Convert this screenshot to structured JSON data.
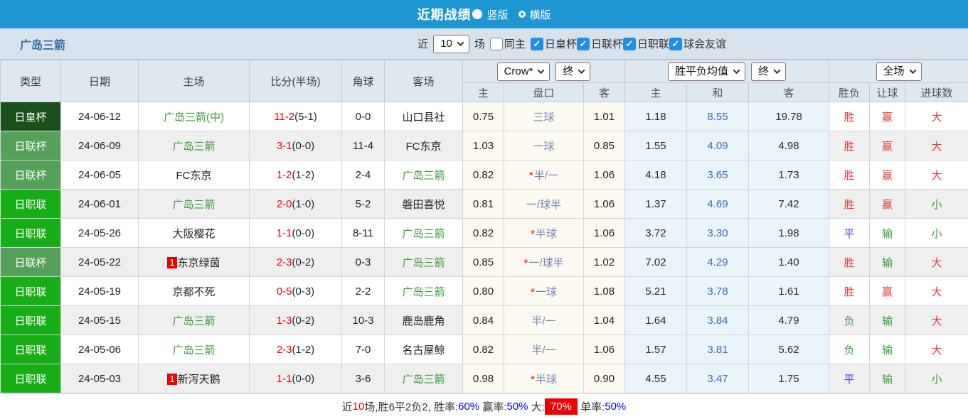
{
  "topbar": {
    "title": "近期战绩",
    "layout_options": [
      {
        "label": "竖版",
        "selected": true
      },
      {
        "label": "横版",
        "selected": false
      }
    ]
  },
  "filterbar": {
    "team": "广岛三箭",
    "recent_label": "近",
    "recent_count": "10",
    "matches_label": "场",
    "same_home": {
      "label": "同主",
      "checked": false
    },
    "leagues": [
      {
        "label": "日皇杯",
        "checked": true
      },
      {
        "label": "日联杯",
        "checked": true
      },
      {
        "label": "日职联",
        "checked": true
      },
      {
        "label": "球会友谊",
        "checked": true
      }
    ]
  },
  "table": {
    "headers": {
      "type": "类型",
      "date": "日期",
      "home": "主场",
      "score": "比分(半场)",
      "corners": "角球",
      "away": "客场"
    },
    "selects": {
      "bookmaker": "Crow*",
      "bookmaker_state": "终",
      "average": "胜平负均值",
      "average_state": "终",
      "scope": "全场"
    },
    "sub_headers": [
      "主",
      "盘口",
      "客",
      "主",
      "和",
      "客",
      "胜负",
      "让球",
      "进球数"
    ],
    "rows": [
      {
        "type": "日皇杯",
        "date": "24-06-12",
        "home": "广岛三箭(中)",
        "home_is_focus": true,
        "home_rank": "",
        "score": "11-2",
        "half": "(5-1)",
        "corners": "0-0",
        "away": "山口县社",
        "away_is_focus": false,
        "crow_home": "0.75",
        "handicap": "三球",
        "handicap_star": false,
        "crow_away": "1.01",
        "avg_home": "1.18",
        "avg_draw": "8.55",
        "avg_away": "19.78",
        "result": "胜",
        "handicap_result": "赢",
        "goals": "大"
      },
      {
        "type": "日联杯",
        "date": "24-06-09",
        "home": "广岛三箭",
        "home_is_focus": true,
        "home_rank": "",
        "score": "3-1",
        "half": "(0-0)",
        "corners": "11-4",
        "away": "FC东京",
        "away_is_focus": false,
        "crow_home": "1.03",
        "handicap": "一球",
        "handicap_star": false,
        "crow_away": "0.85",
        "avg_home": "1.55",
        "avg_draw": "4.09",
        "avg_away": "4.98",
        "result": "胜",
        "handicap_result": "赢",
        "goals": "大"
      },
      {
        "type": "日联杯",
        "date": "24-06-05",
        "home": "FC东京",
        "home_is_focus": false,
        "home_rank": "",
        "score": "1-2",
        "half": "(1-2)",
        "corners": "2-4",
        "away": "广岛三箭",
        "away_is_focus": true,
        "crow_home": "0.82",
        "handicap": "半/一",
        "handicap_star": true,
        "crow_away": "1.06",
        "avg_home": "4.18",
        "avg_draw": "3.65",
        "avg_away": "1.73",
        "result": "胜",
        "handicap_result": "赢",
        "goals": "大"
      },
      {
        "type": "日职联",
        "date": "24-06-01",
        "home": "广岛三箭",
        "home_is_focus": true,
        "home_rank": "",
        "score": "2-0",
        "half": "(1-0)",
        "corners": "5-2",
        "away": "磐田喜悦",
        "away_is_focus": false,
        "crow_home": "0.81",
        "handicap": "一/球半",
        "handicap_star": false,
        "crow_away": "1.06",
        "avg_home": "1.37",
        "avg_draw": "4.69",
        "avg_away": "7.42",
        "result": "胜",
        "handicap_result": "赢",
        "goals": "小"
      },
      {
        "type": "日职联",
        "date": "24-05-26",
        "home": "大阪樱花",
        "home_is_focus": false,
        "home_rank": "",
        "score": "1-1",
        "half": "(0-0)",
        "corners": "8-11",
        "away": "广岛三箭",
        "away_is_focus": true,
        "crow_home": "0.82",
        "handicap": "半球",
        "handicap_star": true,
        "crow_away": "1.06",
        "avg_home": "3.72",
        "avg_draw": "3.30",
        "avg_away": "1.98",
        "result": "平",
        "handicap_result": "输",
        "goals": "小"
      },
      {
        "type": "日联杯",
        "date": "24-05-22",
        "home": "东京绿茵",
        "home_is_focus": false,
        "home_rank": "1",
        "score": "2-3",
        "half": "(0-2)",
        "corners": "0-3",
        "away": "广岛三箭",
        "away_is_focus": true,
        "crow_home": "0.85",
        "handicap": "一/球半",
        "handicap_star": true,
        "crow_away": "1.02",
        "avg_home": "7.02",
        "avg_draw": "4.29",
        "avg_away": "1.40",
        "result": "胜",
        "handicap_result": "输",
        "goals": "大"
      },
      {
        "type": "日职联",
        "date": "24-05-19",
        "home": "京都不死",
        "home_is_focus": false,
        "home_rank": "",
        "score": "0-5",
        "half": "(0-3)",
        "corners": "2-2",
        "away": "广岛三箭",
        "away_is_focus": true,
        "crow_home": "0.80",
        "handicap": "一球",
        "handicap_star": true,
        "crow_away": "1.08",
        "avg_home": "5.21",
        "avg_draw": "3.78",
        "avg_away": "1.61",
        "result": "胜",
        "handicap_result": "赢",
        "goals": "大"
      },
      {
        "type": "日职联",
        "date": "24-05-15",
        "home": "广岛三箭",
        "home_is_focus": true,
        "home_rank": "",
        "score": "1-3",
        "half": "(0-2)",
        "corners": "10-3",
        "away": "鹿岛鹿角",
        "away_is_focus": false,
        "crow_home": "0.84",
        "handicap": "半/一",
        "handicap_star": false,
        "crow_away": "1.04",
        "avg_home": "1.64",
        "avg_draw": "3.84",
        "avg_away": "4.79",
        "result": "负",
        "handicap_result": "输",
        "goals": "大"
      },
      {
        "type": "日职联",
        "date": "24-05-06",
        "home": "广岛三箭",
        "home_is_focus": true,
        "home_rank": "",
        "score": "2-3",
        "half": "(1-2)",
        "corners": "7-0",
        "away": "名古屋鲸",
        "away_is_focus": false,
        "crow_home": "0.82",
        "handicap": "半/一",
        "handicap_star": false,
        "crow_away": "1.06",
        "avg_home": "1.57",
        "avg_draw": "3.81",
        "avg_away": "5.62",
        "result": "负",
        "handicap_result": "输",
        "goals": "大"
      },
      {
        "type": "日职联",
        "date": "24-05-03",
        "home": "新泻天鹅",
        "home_is_focus": false,
        "home_rank": "1",
        "score": "1-1",
        "half": "(0-0)",
        "corners": "3-6",
        "away": "广岛三箭",
        "away_is_focus": true,
        "crow_home": "0.98",
        "handicap": "半球",
        "handicap_star": true,
        "crow_away": "0.90",
        "avg_home": "4.55",
        "avg_draw": "3.47",
        "avg_away": "1.75",
        "result": "平",
        "handicap_result": "输",
        "goals": "小"
      }
    ]
  },
  "footer": {
    "segments": [
      {
        "text": "近",
        "style": "plain"
      },
      {
        "text": "10",
        "style": "red-text"
      },
      {
        "text": "场,胜6平2负2, ",
        "style": "plain"
      },
      {
        "text": "胜率:",
        "style": "plain"
      },
      {
        "text": "60%",
        "style": "blue-text"
      },
      {
        "text": " 赢率:",
        "style": "plain"
      },
      {
        "text": "50%",
        "style": "blue-text"
      },
      {
        "text": " 大:",
        "style": "plain"
      },
      {
        "text": "70%",
        "style": "red-badge"
      },
      {
        "text": " 单率:",
        "style": "plain"
      },
      {
        "text": "50%",
        "style": "blue-text"
      }
    ]
  },
  "colors": {
    "topbar_bg": "#1e96d2",
    "filterbar_bg": "#d6e2ec",
    "header_bg": "#dee8f0",
    "team_green": "#3d9a3d",
    "red": "#ee0000",
    "blue": "#0000ee",
    "checkbox_blue": "#1e90e6",
    "handicap_text": "#7585b5",
    "avg_draw_text": "#3a6cb8",
    "type": {
      "日皇杯": "#1b4f1b",
      "日联杯": "#55a05a",
      "日职联": "#16ad16"
    },
    "outcome": {
      "胜": "#e03a3a",
      "平": "#4646cc",
      "负": "#48a048",
      "赢": "#e03a3a",
      "输": "#3d9a3d",
      "大": "#e03a3a",
      "小": "#3d9a3d"
    }
  }
}
